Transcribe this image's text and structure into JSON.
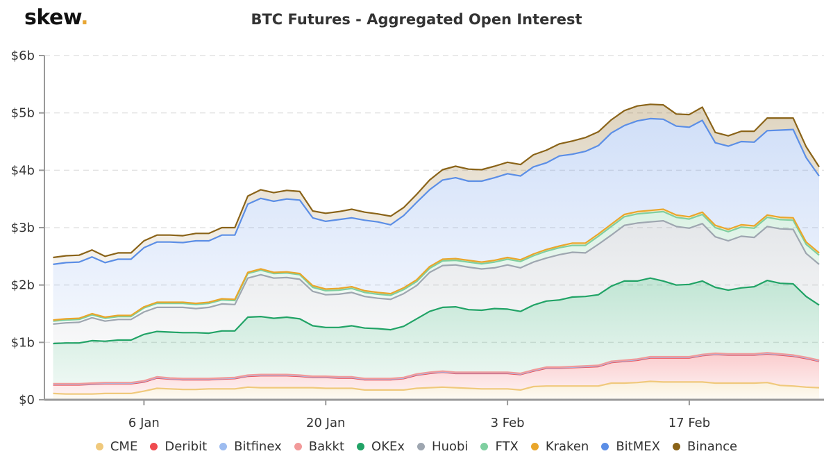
{
  "logo": {
    "text": "skew",
    "dot": "."
  },
  "title": "BTC Futures - Aggregated Open Interest",
  "chart_data": {
    "type": "area",
    "stacked": true,
    "title": "BTC Futures - Aggregated Open Interest",
    "xlabel": "",
    "ylabel": "",
    "ylim": [
      0,
      6
    ],
    "y_unit": "billion USD",
    "xlim": [
      "2019-12-29T08:00",
      "2020-02-27T09:00"
    ],
    "y_ticks": [
      {
        "value": 0,
        "label": "$0"
      },
      {
        "value": 1,
        "label": "$1b"
      },
      {
        "value": 2,
        "label": "$2b"
      },
      {
        "value": 3,
        "label": "$3b"
      },
      {
        "value": 4,
        "label": "$4b"
      },
      {
        "value": 5,
        "label": "$5b"
      },
      {
        "value": 6,
        "label": "$6b"
      }
    ],
    "x_ticks": [
      {
        "value": "2020-01-06",
        "label": "6 Jan"
      },
      {
        "value": "2020-01-20",
        "label": "20 Jan"
      },
      {
        "value": "2020-02-03",
        "label": "3 Feb"
      },
      {
        "value": "2020-02-17",
        "label": "17 Feb"
      }
    ],
    "grid": true,
    "legend_position": "bottom",
    "x": [
      "2019-12-30",
      "2019-12-31",
      "2020-01-01",
      "2020-01-02",
      "2020-01-03",
      "2020-01-04",
      "2020-01-05",
      "2020-01-06",
      "2020-01-07",
      "2020-01-08",
      "2020-01-09",
      "2020-01-10",
      "2020-01-11",
      "2020-01-12",
      "2020-01-13",
      "2020-01-14",
      "2020-01-15",
      "2020-01-16",
      "2020-01-17",
      "2020-01-18",
      "2020-01-19",
      "2020-01-20",
      "2020-01-21",
      "2020-01-22",
      "2020-01-23",
      "2020-01-24",
      "2020-01-25",
      "2020-01-26",
      "2020-01-27",
      "2020-01-28",
      "2020-01-29",
      "2020-01-30",
      "2020-01-31",
      "2020-02-01",
      "2020-02-02",
      "2020-02-03",
      "2020-02-04",
      "2020-02-05",
      "2020-02-06",
      "2020-02-07",
      "2020-02-08",
      "2020-02-09",
      "2020-02-10",
      "2020-02-11",
      "2020-02-12",
      "2020-02-13",
      "2020-02-14",
      "2020-02-15",
      "2020-02-16",
      "2020-02-17",
      "2020-02-18",
      "2020-02-19",
      "2020-02-20",
      "2020-02-21",
      "2020-02-22",
      "2020-02-23",
      "2020-02-24",
      "2020-02-25",
      "2020-02-26",
      "2020-02-27"
    ],
    "series": [
      {
        "name": "CME",
        "color": "#f0c97c",
        "values": [
          0.11,
          0.1,
          0.1,
          0.1,
          0.11,
          0.11,
          0.11,
          0.15,
          0.2,
          0.19,
          0.18,
          0.18,
          0.19,
          0.19,
          0.19,
          0.22,
          0.21,
          0.21,
          0.21,
          0.21,
          0.21,
          0.2,
          0.2,
          0.2,
          0.17,
          0.17,
          0.17,
          0.17,
          0.2,
          0.21,
          0.22,
          0.21,
          0.2,
          0.19,
          0.19,
          0.19,
          0.17,
          0.23,
          0.24,
          0.24,
          0.24,
          0.24,
          0.24,
          0.29,
          0.29,
          0.3,
          0.32,
          0.31,
          0.31,
          0.31,
          0.31,
          0.29,
          0.29,
          0.29,
          0.29,
          0.3,
          0.25,
          0.24,
          0.22,
          0.21
        ]
      },
      {
        "name": "Deribit",
        "color": "#ef4b4f",
        "values": [
          0.15,
          0.16,
          0.16,
          0.17,
          0.17,
          0.17,
          0.17,
          0.16,
          0.18,
          0.17,
          0.17,
          0.17,
          0.16,
          0.17,
          0.18,
          0.19,
          0.21,
          0.21,
          0.21,
          0.2,
          0.18,
          0.19,
          0.18,
          0.18,
          0.18,
          0.18,
          0.18,
          0.2,
          0.23,
          0.25,
          0.26,
          0.25,
          0.26,
          0.27,
          0.27,
          0.27,
          0.27,
          0.27,
          0.31,
          0.31,
          0.32,
          0.33,
          0.34,
          0.36,
          0.38,
          0.39,
          0.41,
          0.42,
          0.42,
          0.42,
          0.46,
          0.5,
          0.49,
          0.49,
          0.49,
          0.5,
          0.53,
          0.52,
          0.5,
          0.46
        ]
      },
      {
        "name": "Bitfinex",
        "color": "#9dbcf0",
        "values": [
          0.01,
          0.01,
          0.01,
          0.01,
          0.01,
          0.01,
          0.01,
          0.01,
          0.01,
          0.01,
          0.01,
          0.01,
          0.01,
          0.01,
          0.01,
          0.01,
          0.01,
          0.01,
          0.01,
          0.01,
          0.01,
          0.01,
          0.01,
          0.01,
          0.01,
          0.01,
          0.01,
          0.01,
          0.01,
          0.01,
          0.01,
          0.01,
          0.01,
          0.01,
          0.01,
          0.01,
          0.01,
          0.01,
          0.01,
          0.01,
          0.01,
          0.01,
          0.01,
          0.01,
          0.01,
          0.01,
          0.01,
          0.01,
          0.01,
          0.01,
          0.01,
          0.01,
          0.01,
          0.01,
          0.01,
          0.01,
          0.01,
          0.01,
          0.01,
          0.01
        ]
      },
      {
        "name": "Bakkt",
        "color": "#f29a9a",
        "values": [
          0.01,
          0.01,
          0.01,
          0.01,
          0.01,
          0.01,
          0.01,
          0.01,
          0.01,
          0.01,
          0.01,
          0.01,
          0.01,
          0.01,
          0.01,
          0.01,
          0.01,
          0.01,
          0.01,
          0.01,
          0.01,
          0.01,
          0.01,
          0.01,
          0.01,
          0.01,
          0.01,
          0.01,
          0.01,
          0.01,
          0.01,
          0.01,
          0.01,
          0.01,
          0.01,
          0.01,
          0.01,
          0.01,
          0.01,
          0.01,
          0.01,
          0.01,
          0.01,
          0.01,
          0.01,
          0.01,
          0.01,
          0.01,
          0.01,
          0.01,
          0.01,
          0.01,
          0.01,
          0.01,
          0.01,
          0.01,
          0.01,
          0.01,
          0.01,
          0.01
        ]
      },
      {
        "name": "OKEx",
        "color": "#21a366",
        "values": [
          0.7,
          0.71,
          0.71,
          0.74,
          0.72,
          0.74,
          0.74,
          0.81,
          0.79,
          0.8,
          0.8,
          0.8,
          0.79,
          0.82,
          0.81,
          1.01,
          1.01,
          0.98,
          1.0,
          0.98,
          0.88,
          0.85,
          0.86,
          0.89,
          0.88,
          0.87,
          0.85,
          0.89,
          0.96,
          1.06,
          1.11,
          1.14,
          1.09,
          1.08,
          1.11,
          1.1,
          1.08,
          1.13,
          1.15,
          1.17,
          1.21,
          1.21,
          1.23,
          1.31,
          1.38,
          1.36,
          1.37,
          1.32,
          1.25,
          1.26,
          1.28,
          1.15,
          1.11,
          1.15,
          1.17,
          1.26,
          1.23,
          1.24,
          1.06,
          0.96
        ]
      },
      {
        "name": "Huobi",
        "color": "#9ea6b0",
        "values": [
          0.34,
          0.35,
          0.36,
          0.4,
          0.35,
          0.36,
          0.36,
          0.39,
          0.42,
          0.43,
          0.44,
          0.42,
          0.45,
          0.47,
          0.46,
          0.68,
          0.73,
          0.7,
          0.69,
          0.69,
          0.6,
          0.57,
          0.58,
          0.58,
          0.55,
          0.53,
          0.53,
          0.57,
          0.58,
          0.68,
          0.73,
          0.73,
          0.74,
          0.72,
          0.71,
          0.77,
          0.76,
          0.75,
          0.75,
          0.79,
          0.78,
          0.76,
          0.88,
          0.89,
          0.97,
          1.01,
          0.98,
          1.05,
          1.02,
          0.98,
          1.0,
          0.88,
          0.86,
          0.9,
          0.86,
          0.94,
          0.95,
          0.95,
          0.75,
          0.71
        ]
      },
      {
        "name": "FTX",
        "color": "#7fcfa0",
        "values": [
          0.05,
          0.05,
          0.05,
          0.05,
          0.05,
          0.05,
          0.05,
          0.07,
          0.07,
          0.07,
          0.07,
          0.07,
          0.07,
          0.07,
          0.07,
          0.08,
          0.08,
          0.08,
          0.08,
          0.08,
          0.07,
          0.07,
          0.07,
          0.07,
          0.07,
          0.07,
          0.07,
          0.07,
          0.07,
          0.07,
          0.08,
          0.08,
          0.09,
          0.09,
          0.1,
          0.1,
          0.11,
          0.11,
          0.12,
          0.12,
          0.12,
          0.13,
          0.14,
          0.15,
          0.15,
          0.16,
          0.16,
          0.16,
          0.16,
          0.16,
          0.16,
          0.16,
          0.16,
          0.16,
          0.16,
          0.16,
          0.16,
          0.16,
          0.16,
          0.16
        ]
      },
      {
        "name": "Kraken",
        "color": "#e9a62b",
        "values": [
          0.02,
          0.02,
          0.02,
          0.02,
          0.02,
          0.02,
          0.02,
          0.02,
          0.02,
          0.02,
          0.02,
          0.02,
          0.02,
          0.02,
          0.02,
          0.02,
          0.02,
          0.02,
          0.02,
          0.02,
          0.03,
          0.03,
          0.03,
          0.03,
          0.03,
          0.03,
          0.03,
          0.03,
          0.03,
          0.03,
          0.03,
          0.03,
          0.03,
          0.03,
          0.03,
          0.03,
          0.03,
          0.03,
          0.03,
          0.03,
          0.04,
          0.04,
          0.04,
          0.04,
          0.04,
          0.04,
          0.04,
          0.04,
          0.04,
          0.04,
          0.04,
          0.04,
          0.04,
          0.04,
          0.04,
          0.04,
          0.04,
          0.04,
          0.04,
          0.04
        ]
      },
      {
        "name": "BitMEX",
        "color": "#5b8ee6",
        "values": [
          0.97,
          0.98,
          0.98,
          0.99,
          0.95,
          0.98,
          0.98,
          1.03,
          1.05,
          1.05,
          1.04,
          1.09,
          1.07,
          1.11,
          1.12,
          1.19,
          1.23,
          1.24,
          1.27,
          1.28,
          1.18,
          1.18,
          1.2,
          1.2,
          1.23,
          1.23,
          1.2,
          1.26,
          1.35,
          1.34,
          1.38,
          1.41,
          1.38,
          1.41,
          1.44,
          1.46,
          1.46,
          1.52,
          1.51,
          1.57,
          1.55,
          1.6,
          1.54,
          1.59,
          1.55,
          1.58,
          1.6,
          1.57,
          1.55,
          1.56,
          1.6,
          1.44,
          1.45,
          1.45,
          1.46,
          1.47,
          1.52,
          1.54,
          1.47,
          1.34
        ]
      },
      {
        "name": "Binance",
        "color": "#8a6318",
        "values": [
          0.12,
          0.12,
          0.12,
          0.12,
          0.11,
          0.11,
          0.11,
          0.12,
          0.12,
          0.12,
          0.12,
          0.13,
          0.13,
          0.13,
          0.13,
          0.14,
          0.15,
          0.15,
          0.15,
          0.15,
          0.12,
          0.14,
          0.14,
          0.15,
          0.14,
          0.14,
          0.15,
          0.14,
          0.14,
          0.17,
          0.18,
          0.2,
          0.21,
          0.2,
          0.2,
          0.2,
          0.2,
          0.21,
          0.22,
          0.21,
          0.23,
          0.24,
          0.24,
          0.23,
          0.26,
          0.26,
          0.25,
          0.25,
          0.21,
          0.22,
          0.23,
          0.18,
          0.18,
          0.18,
          0.19,
          0.22,
          0.21,
          0.2,
          0.19,
          0.16
        ]
      }
    ]
  }
}
